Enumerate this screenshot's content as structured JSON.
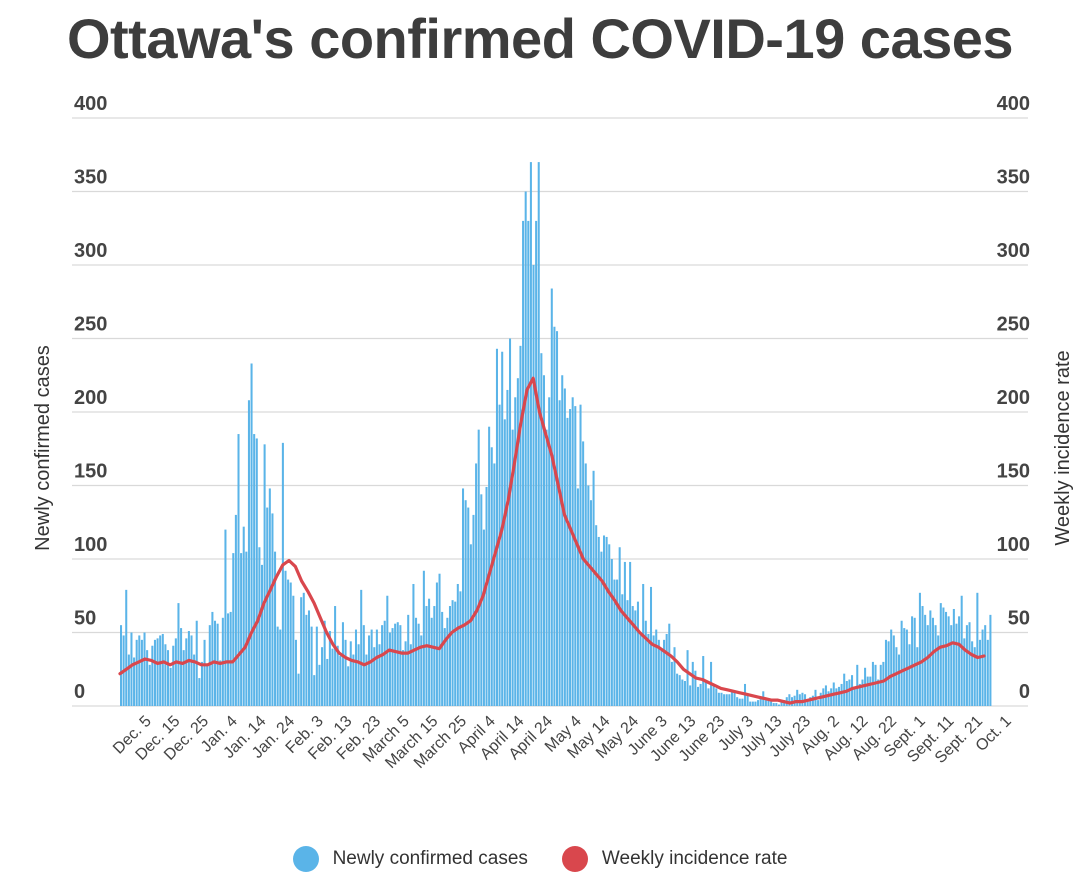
{
  "chart_data": {
    "type": "bar",
    "title": "Ottawa's confirmed COVID-19 cases",
    "ylabel": "Newly confirmed cases",
    "ylabel_right": "Weekly incidence rate",
    "ylim": [
      0,
      400
    ],
    "yticks": [
      0,
      50,
      100,
      150,
      200,
      250,
      300,
      350,
      400
    ],
    "x_tick_labels": [
      "Dec. 5",
      "Dec. 15",
      "Dec. 25",
      "Jan. 4",
      "Jan. 14",
      "Jan. 24",
      "Feb. 3",
      "Feb. 13",
      "Feb. 23",
      "March 5",
      "March 15",
      "March 25",
      "April 4",
      "April 14",
      "April 24",
      "May 4",
      "May 14",
      "May 24",
      "June 3",
      "June 13",
      "June 23",
      "July 3",
      "July 13",
      "July 23",
      "Aug. 2",
      "Aug. 12",
      "Aug. 22",
      "Sept. 1",
      "Sept. 11",
      "Sept. 21",
      "Oct. 1"
    ],
    "grid": true,
    "legend_position": "bottom",
    "colors": {
      "bars": "#5ab4e8",
      "line": "#d9474d"
    },
    "series": [
      {
        "name": "Newly confirmed cases",
        "type": "bar",
        "values": [
          55,
          48,
          79,
          35,
          50,
          33,
          45,
          48,
          45,
          50,
          38,
          28,
          41,
          45,
          46,
          48,
          49,
          42,
          38,
          26,
          41,
          46,
          70,
          53,
          38,
          46,
          51,
          48,
          35,
          58,
          19,
          30,
          45,
          28,
          55,
          64,
          58,
          56,
          31,
          60,
          120,
          63,
          64,
          104,
          130,
          185,
          104,
          122,
          105,
          208,
          233,
          185,
          182,
          108,
          96,
          178,
          135,
          148,
          131,
          105,
          54,
          52,
          179,
          92,
          86,
          84,
          75,
          45,
          22,
          74,
          77,
          62,
          65,
          54,
          21,
          54,
          28,
          40,
          58,
          32,
          51,
          39,
          68,
          41,
          34,
          57,
          45,
          27,
          44,
          35,
          52,
          42,
          79,
          55,
          35,
          48,
          52,
          40,
          52,
          42,
          55,
          58,
          75,
          50,
          53,
          56,
          57,
          55,
          38,
          44,
          62,
          42,
          83,
          60,
          56,
          48,
          92,
          68,
          73,
          60,
          68,
          84,
          90,
          64,
          53,
          60,
          68,
          72,
          71,
          83,
          78,
          148,
          140,
          135,
          110,
          130,
          165,
          188,
          144,
          120,
          149,
          190,
          176,
          165,
          243,
          205,
          241,
          195,
          215,
          250,
          188,
          210,
          223,
          245,
          330,
          350,
          330,
          370,
          300,
          330,
          370,
          240,
          225,
          188,
          210,
          284,
          258,
          255,
          208,
          225,
          216,
          196,
          202,
          210,
          204,
          148,
          205,
          180,
          165,
          150,
          140,
          160,
          123,
          115,
          105,
          116,
          115,
          110,
          100,
          86,
          86,
          108,
          76,
          98,
          72,
          98,
          68,
          65,
          71,
          50,
          83,
          58,
          49,
          81,
          48,
          52,
          45,
          39,
          45,
          49,
          56,
          30,
          40,
          22,
          21,
          18,
          17,
          38,
          14,
          30,
          24,
          13,
          15,
          34,
          16,
          12,
          30,
          15,
          12,
          9,
          9,
          8,
          8,
          8,
          10,
          9,
          6,
          5,
          5,
          15,
          8,
          3,
          3,
          3,
          4,
          6,
          10,
          4,
          4,
          3,
          2,
          2,
          1,
          3,
          4,
          6,
          8,
          6,
          7,
          11,
          8,
          9,
          8,
          4,
          6,
          7,
          11,
          4,
          9,
          12,
          14,
          10,
          12,
          16,
          12,
          13,
          15,
          22,
          17,
          18,
          21,
          12,
          28,
          15,
          18,
          26,
          20,
          20,
          30,
          28,
          18,
          28,
          30,
          45,
          44,
          52,
          48,
          40,
          35,
          58,
          53,
          52,
          42,
          61,
          60,
          40,
          77,
          68,
          62,
          55,
          65,
          60,
          55,
          48,
          70,
          67,
          64,
          61,
          55,
          66,
          56,
          61,
          75,
          46,
          55,
          57,
          44,
          40,
          77,
          45,
          52,
          55,
          45,
          62
        ]
      },
      {
        "name": "Weekly incidence rate",
        "type": "line",
        "values": [
          22,
          25,
          28,
          30,
          32,
          31,
          29,
          30,
          28,
          30,
          29,
          31,
          30,
          28,
          28,
          30,
          29,
          30,
          30,
          35,
          40,
          50,
          58,
          70,
          79,
          88,
          96,
          99,
          95,
          85,
          78,
          70,
          60,
          50,
          42,
          36,
          33,
          31,
          30,
          28,
          30,
          33,
          35,
          38,
          37,
          36,
          36,
          38,
          40,
          41,
          40,
          39,
          45,
          50,
          53,
          55,
          58,
          65,
          75,
          90,
          105,
          120,
          140,
          165,
          192,
          215,
          223,
          200,
          185,
          170,
          150,
          130,
          120,
          110,
          100,
          95,
          90,
          85,
          78,
          72,
          65,
          60,
          55,
          50,
          46,
          42,
          40,
          37,
          34,
          30,
          25,
          22,
          19,
          18,
          16,
          14,
          12,
          11,
          10,
          9,
          8,
          7,
          6,
          5,
          4,
          4,
          3,
          2,
          3,
          3,
          4,
          5,
          6,
          7,
          8,
          9,
          10,
          12,
          13,
          14,
          15,
          16,
          17,
          20,
          22,
          24,
          26,
          28,
          30,
          33,
          37,
          40,
          41,
          43,
          42,
          38,
          35,
          33,
          34
        ]
      }
    ]
  }
}
